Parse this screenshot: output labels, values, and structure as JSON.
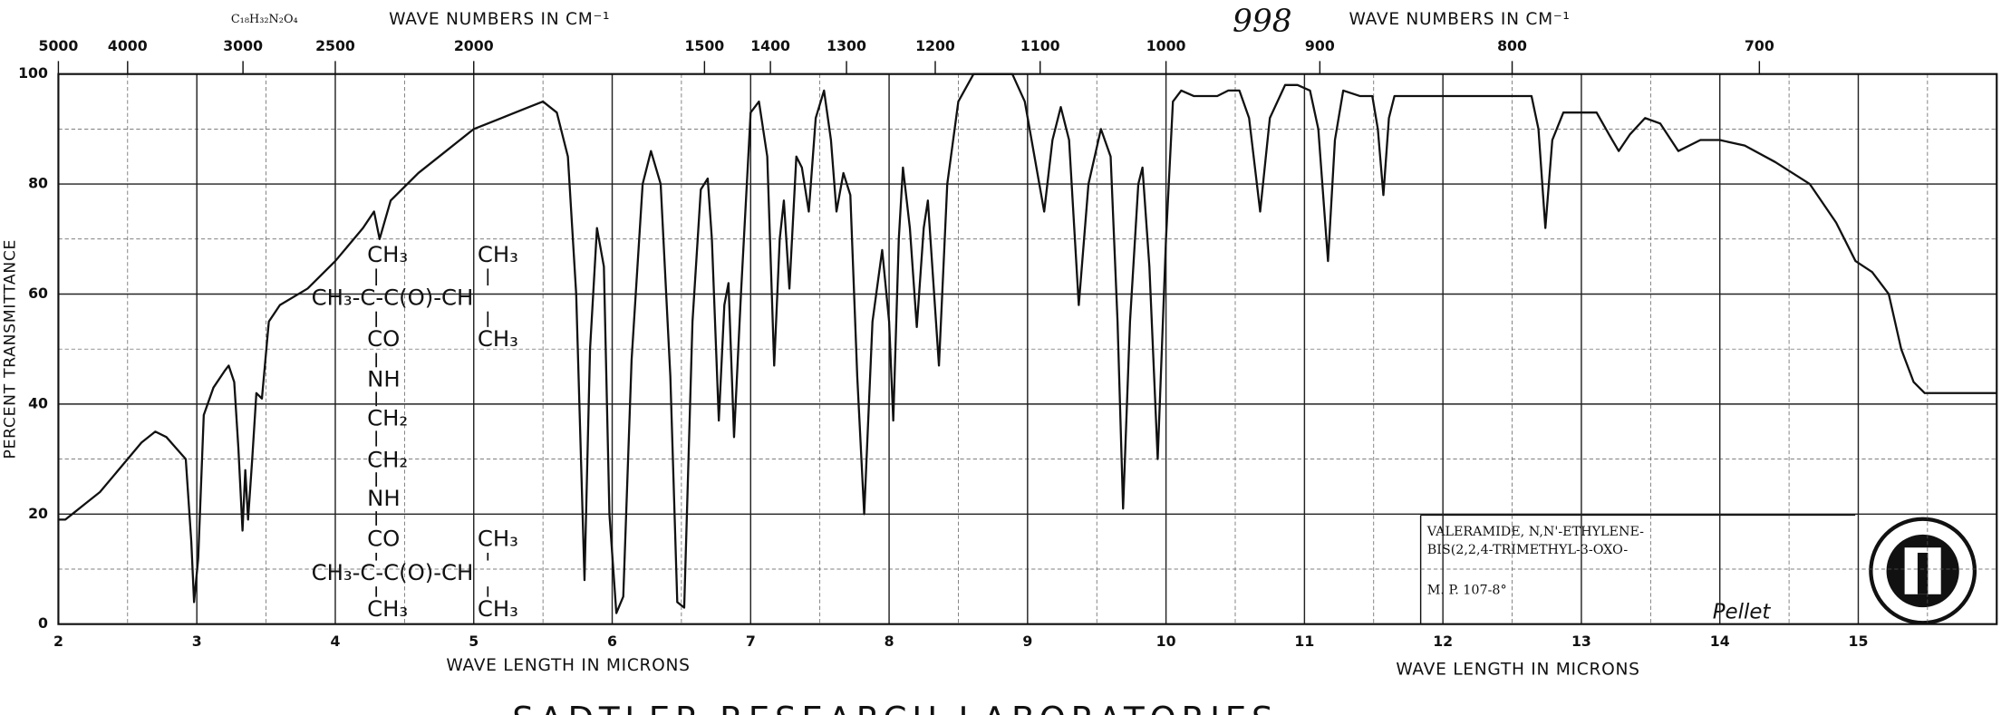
{
  "chart_data": {
    "type": "line",
    "sample_number": "998",
    "formula": "C₁₈H₃₂N₂O₄",
    "x2_label": "WAVE NUMBERS IN CM⁻¹",
    "x2_label_right": "WAVE NUMBERS IN CM⁻¹",
    "x_label": "WAVE LENGTH IN MICRONS",
    "x_label_right": "WAVE LENGTH IN MICRONS",
    "y_label": "PERCENT TRANSMITTANCE",
    "footer": "SADTLER RESEARCH LABORATORIES",
    "compound": [
      "VALERAMIDE, N,N'-ETHYLENE-",
      "BIS(2,2,4-TRIMETHYL-3-OXO-"
    ],
    "melting_point": "M. P. 107-8°",
    "sample_form": "Pellet",
    "structure": [
      "CH₃",
      "CH₃",
      "CH₃-C-C(O)-CH",
      "CO",
      "CH₃",
      "NH",
      "CH₂",
      "CH₂",
      "NH",
      "CO",
      "CH₃",
      "CH₃-C-C(O)-CH",
      "CH₃",
      "CH₃"
    ],
    "xlim": [
      2,
      16
    ],
    "ylim": [
      0,
      100
    ],
    "xticks": [
      2,
      3,
      4,
      5,
      6,
      7,
      8,
      9,
      10,
      11,
      12,
      13,
      14,
      15
    ],
    "yticks": [
      0,
      20,
      40,
      60,
      80,
      100
    ],
    "x_minor_grid": [
      2.5,
      3.5,
      4.5,
      5.5,
      6.5,
      7.5,
      8.5,
      9.5,
      10.5,
      11.5,
      12.5,
      13.5,
      14.5,
      15.5
    ],
    "y_minor_grid": [
      10,
      30,
      50,
      70,
      90
    ],
    "x2ticks": [
      5000,
      4000,
      3000,
      2500,
      2000,
      1500,
      1400,
      1300,
      1200,
      1100,
      1000,
      900,
      800,
      700
    ],
    "grid": true,
    "series": [
      {
        "color": "#111111",
        "x": [
          2.0,
          2.05,
          2.1,
          2.2,
          2.3,
          2.4,
          2.5,
          2.6,
          2.7,
          2.78,
          2.85,
          2.92,
          2.96,
          2.98,
          3.01,
          3.05,
          3.12,
          3.2,
          3.23,
          3.27,
          3.3,
          3.33,
          3.35,
          3.37,
          3.4,
          3.43,
          3.47,
          3.52,
          3.6,
          3.8,
          4.0,
          4.2,
          4.28,
          4.32,
          4.4,
          4.6,
          4.8,
          5.0,
          5.2,
          5.4,
          5.5,
          5.6,
          5.68,
          5.74,
          5.8,
          5.84,
          5.89,
          5.94,
          5.98,
          6.03,
          6.08,
          6.14,
          6.22,
          6.28,
          6.35,
          6.42,
          6.47,
          6.52,
          6.58,
          6.64,
          6.69,
          6.72,
          6.77,
          6.81,
          6.84,
          6.88,
          6.93,
          7.0,
          7.06,
          7.12,
          7.17,
          7.21,
          7.24,
          7.28,
          7.33,
          7.37,
          7.42,
          7.47,
          7.53,
          7.58,
          7.62,
          7.67,
          7.72,
          7.77,
          7.82,
          7.88,
          7.95,
          8.0,
          8.03,
          8.07,
          8.1,
          8.15,
          8.2,
          8.25,
          8.28,
          8.32,
          8.36,
          8.42,
          8.5,
          8.61,
          8.75,
          8.89,
          8.98,
          9.05,
          9.12,
          9.18,
          9.24,
          9.3,
          9.37,
          9.44,
          9.53,
          9.6,
          9.65,
          9.69,
          9.74,
          9.8,
          9.83,
          9.88,
          9.94,
          10.0,
          10.05,
          10.11,
          10.2,
          10.37,
          10.45,
          10.53,
          10.6,
          10.68,
          10.75,
          10.86,
          10.95,
          11.04,
          11.1,
          11.17,
          11.22,
          11.28,
          11.4,
          11.49,
          11.53,
          11.57,
          11.61,
          11.65,
          12.0,
          12.64,
          12.69,
          12.74,
          12.79,
          12.87,
          13.11,
          13.2,
          13.27,
          13.35,
          13.46,
          13.57,
          13.7,
          13.86,
          14.0,
          14.18,
          14.4,
          14.65,
          14.84,
          14.98,
          15.1,
          15.22,
          15.31,
          15.4,
          15.48,
          16.0
        ],
        "values": [
          19,
          19,
          20,
          22,
          24,
          27,
          30,
          33,
          35,
          34,
          32,
          30,
          15,
          4,
          12,
          38,
          43,
          46,
          47,
          44,
          32,
          17,
          28,
          19,
          30,
          42,
          41,
          55,
          58,
          61,
          66,
          72,
          75,
          70,
          77,
          82,
          86,
          90,
          92,
          94,
          95,
          93,
          85,
          60,
          8,
          50,
          72,
          65,
          20,
          2,
          5,
          48,
          80,
          86,
          80,
          45,
          4,
          3,
          55,
          79,
          81,
          70,
          37,
          58,
          62,
          34,
          60,
          93,
          95,
          85,
          47,
          70,
          77,
          61,
          85,
          83,
          75,
          92,
          97,
          88,
          75,
          82,
          78,
          45,
          20,
          55,
          68,
          55,
          37,
          70,
          83,
          72,
          54,
          72,
          77,
          62,
          47,
          80,
          95,
          100,
          100,
          100,
          95,
          85,
          75,
          88,
          94,
          88,
          58,
          80,
          90,
          85,
          55,
          21,
          55,
          80,
          83,
          65,
          30,
          70,
          95,
          97,
          96,
          96,
          97,
          97,
          92,
          75,
          92,
          98,
          98,
          97,
          90,
          66,
          88,
          97,
          96,
          96,
          90,
          78,
          92,
          96,
          96,
          96,
          90,
          72,
          88,
          93,
          93,
          89,
          86,
          89,
          92,
          91,
          86,
          88,
          88,
          87,
          84,
          80,
          73,
          66,
          64,
          60,
          50,
          44,
          42,
          42
        ]
      }
    ]
  }
}
